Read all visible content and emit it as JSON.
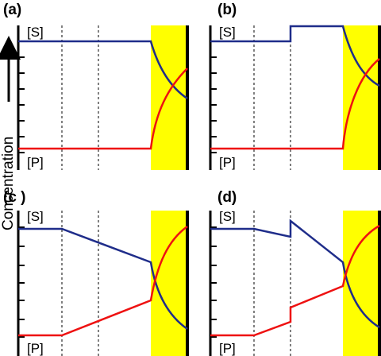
{
  "figure": {
    "axis_title": "Concentration",
    "colors": {
      "substrate": "#1f2d8a",
      "product": "#ee1111",
      "highlight": "#ffff00",
      "frame": "#000000"
    },
    "panels": [
      {
        "id": "a",
        "label": "(a)",
        "top_label": "[S]",
        "bottom_label": "[P]"
      },
      {
        "id": "b",
        "label": "(b)",
        "top_label": "[S]",
        "bottom_label": "[P]"
      },
      {
        "id": "c",
        "label": "(c )",
        "top_label": "[S]",
        "bottom_label": "[P]"
      },
      {
        "id": "d",
        "label": "(d)",
        "top_label": "[S]",
        "bottom_label": "[P]"
      }
    ]
  }
}
